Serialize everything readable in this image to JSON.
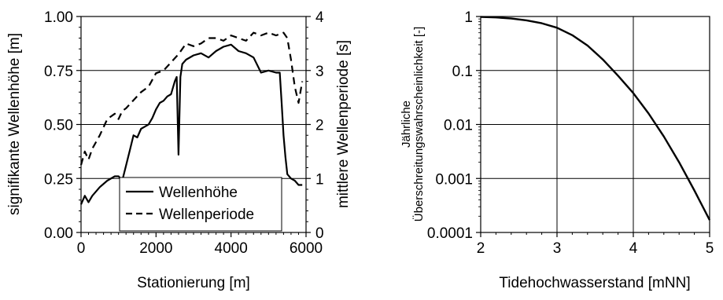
{
  "chart_data": [
    {
      "type": "line",
      "xlabel": "Stationierung [m]",
      "ylabel_left": "signifikante Wellenhöhe [m]",
      "ylabel_right": "mittlere Wellenperiode [s]",
      "xlim": [
        0,
        6000
      ],
      "ylim_left": [
        0,
        1.0
      ],
      "ylim_right": [
        0,
        4
      ],
      "x_ticks": [
        "0",
        "2000",
        "4000",
        "6000"
      ],
      "y_ticks_left": [
        "0.00",
        "0.25",
        "0.50",
        "0.75",
        "1.00"
      ],
      "y_ticks_right": [
        "0",
        "1",
        "2",
        "3",
        "4"
      ],
      "grid": "horizontal",
      "legend": "bottom-center",
      "series": [
        {
          "name": "Wellenhöhe",
          "axis": "left",
          "style": "solid",
          "x": [
            0,
            100,
            200,
            300,
            500,
            700,
            900,
            1000,
            1100,
            1200,
            1300,
            1400,
            1500,
            1600,
            1700,
            1800,
            1900,
            2000,
            2100,
            2200,
            2300,
            2400,
            2500,
            2550,
            2600,
            2650,
            2700,
            2800,
            3000,
            3200,
            3400,
            3600,
            3800,
            4000,
            4200,
            4400,
            4600,
            4800,
            5000,
            5200,
            5300,
            5350,
            5400,
            5450,
            5500,
            5600,
            5700,
            5800,
            5900
          ],
          "y": [
            0.13,
            0.17,
            0.14,
            0.17,
            0.21,
            0.24,
            0.26,
            0.26,
            0.24,
            0.31,
            0.38,
            0.45,
            0.44,
            0.48,
            0.49,
            0.5,
            0.53,
            0.57,
            0.6,
            0.61,
            0.63,
            0.64,
            0.7,
            0.72,
            0.36,
            0.72,
            0.78,
            0.8,
            0.82,
            0.83,
            0.81,
            0.84,
            0.86,
            0.87,
            0.84,
            0.83,
            0.81,
            0.74,
            0.75,
            0.74,
            0.74,
            0.6,
            0.45,
            0.35,
            0.27,
            0.25,
            0.24,
            0.22,
            0.22
          ]
        },
        {
          "name": "Wellenperiode",
          "axis": "right",
          "style": "dashed",
          "x": [
            0,
            100,
            200,
            300,
            500,
            700,
            900,
            1000,
            1100,
            1200,
            1400,
            1600,
            1800,
            2000,
            2200,
            2400,
            2600,
            2800,
            3000,
            3200,
            3400,
            3600,
            3800,
            4000,
            4200,
            4400,
            4600,
            4800,
            5000,
            5200,
            5400,
            5500,
            5600,
            5700,
            5800,
            5900
          ],
          "y": [
            1.25,
            1.5,
            1.35,
            1.55,
            1.8,
            2.1,
            2.2,
            2.1,
            2.25,
            2.3,
            2.45,
            2.6,
            2.7,
            2.95,
            3.0,
            3.15,
            3.3,
            3.5,
            3.45,
            3.5,
            3.6,
            3.6,
            3.55,
            3.65,
            3.6,
            3.55,
            3.7,
            3.65,
            3.7,
            3.65,
            3.7,
            3.6,
            3.2,
            2.7,
            2.4,
            2.8
          ]
        }
      ]
    },
    {
      "type": "line",
      "xlabel": "Tidehochwasserstand  [mNN]",
      "ylabel_line1": "Jährliche",
      "ylabel_line2": "Überschreitungswahrscheinlichkeit  [-]",
      "xlim": [
        2,
        5
      ],
      "ylim": [
        0.0001,
        1
      ],
      "yscale": "log",
      "x_ticks": [
        "2",
        "3",
        "4",
        "5"
      ],
      "y_ticks": [
        "1",
        "0.1",
        "0.01",
        "0.001",
        "0.0001"
      ],
      "grid": "both",
      "series": [
        {
          "style": "solid",
          "x": [
            2.0,
            2.2,
            2.4,
            2.6,
            2.8,
            3.0,
            3.2,
            3.4,
            3.6,
            3.8,
            4.0,
            4.2,
            4.4,
            4.6,
            4.8,
            5.0
          ],
          "y": [
            0.98,
            0.96,
            0.92,
            0.85,
            0.75,
            0.62,
            0.45,
            0.29,
            0.16,
            0.08,
            0.038,
            0.016,
            0.006,
            0.002,
            0.0006,
            0.00017
          ]
        }
      ]
    }
  ]
}
